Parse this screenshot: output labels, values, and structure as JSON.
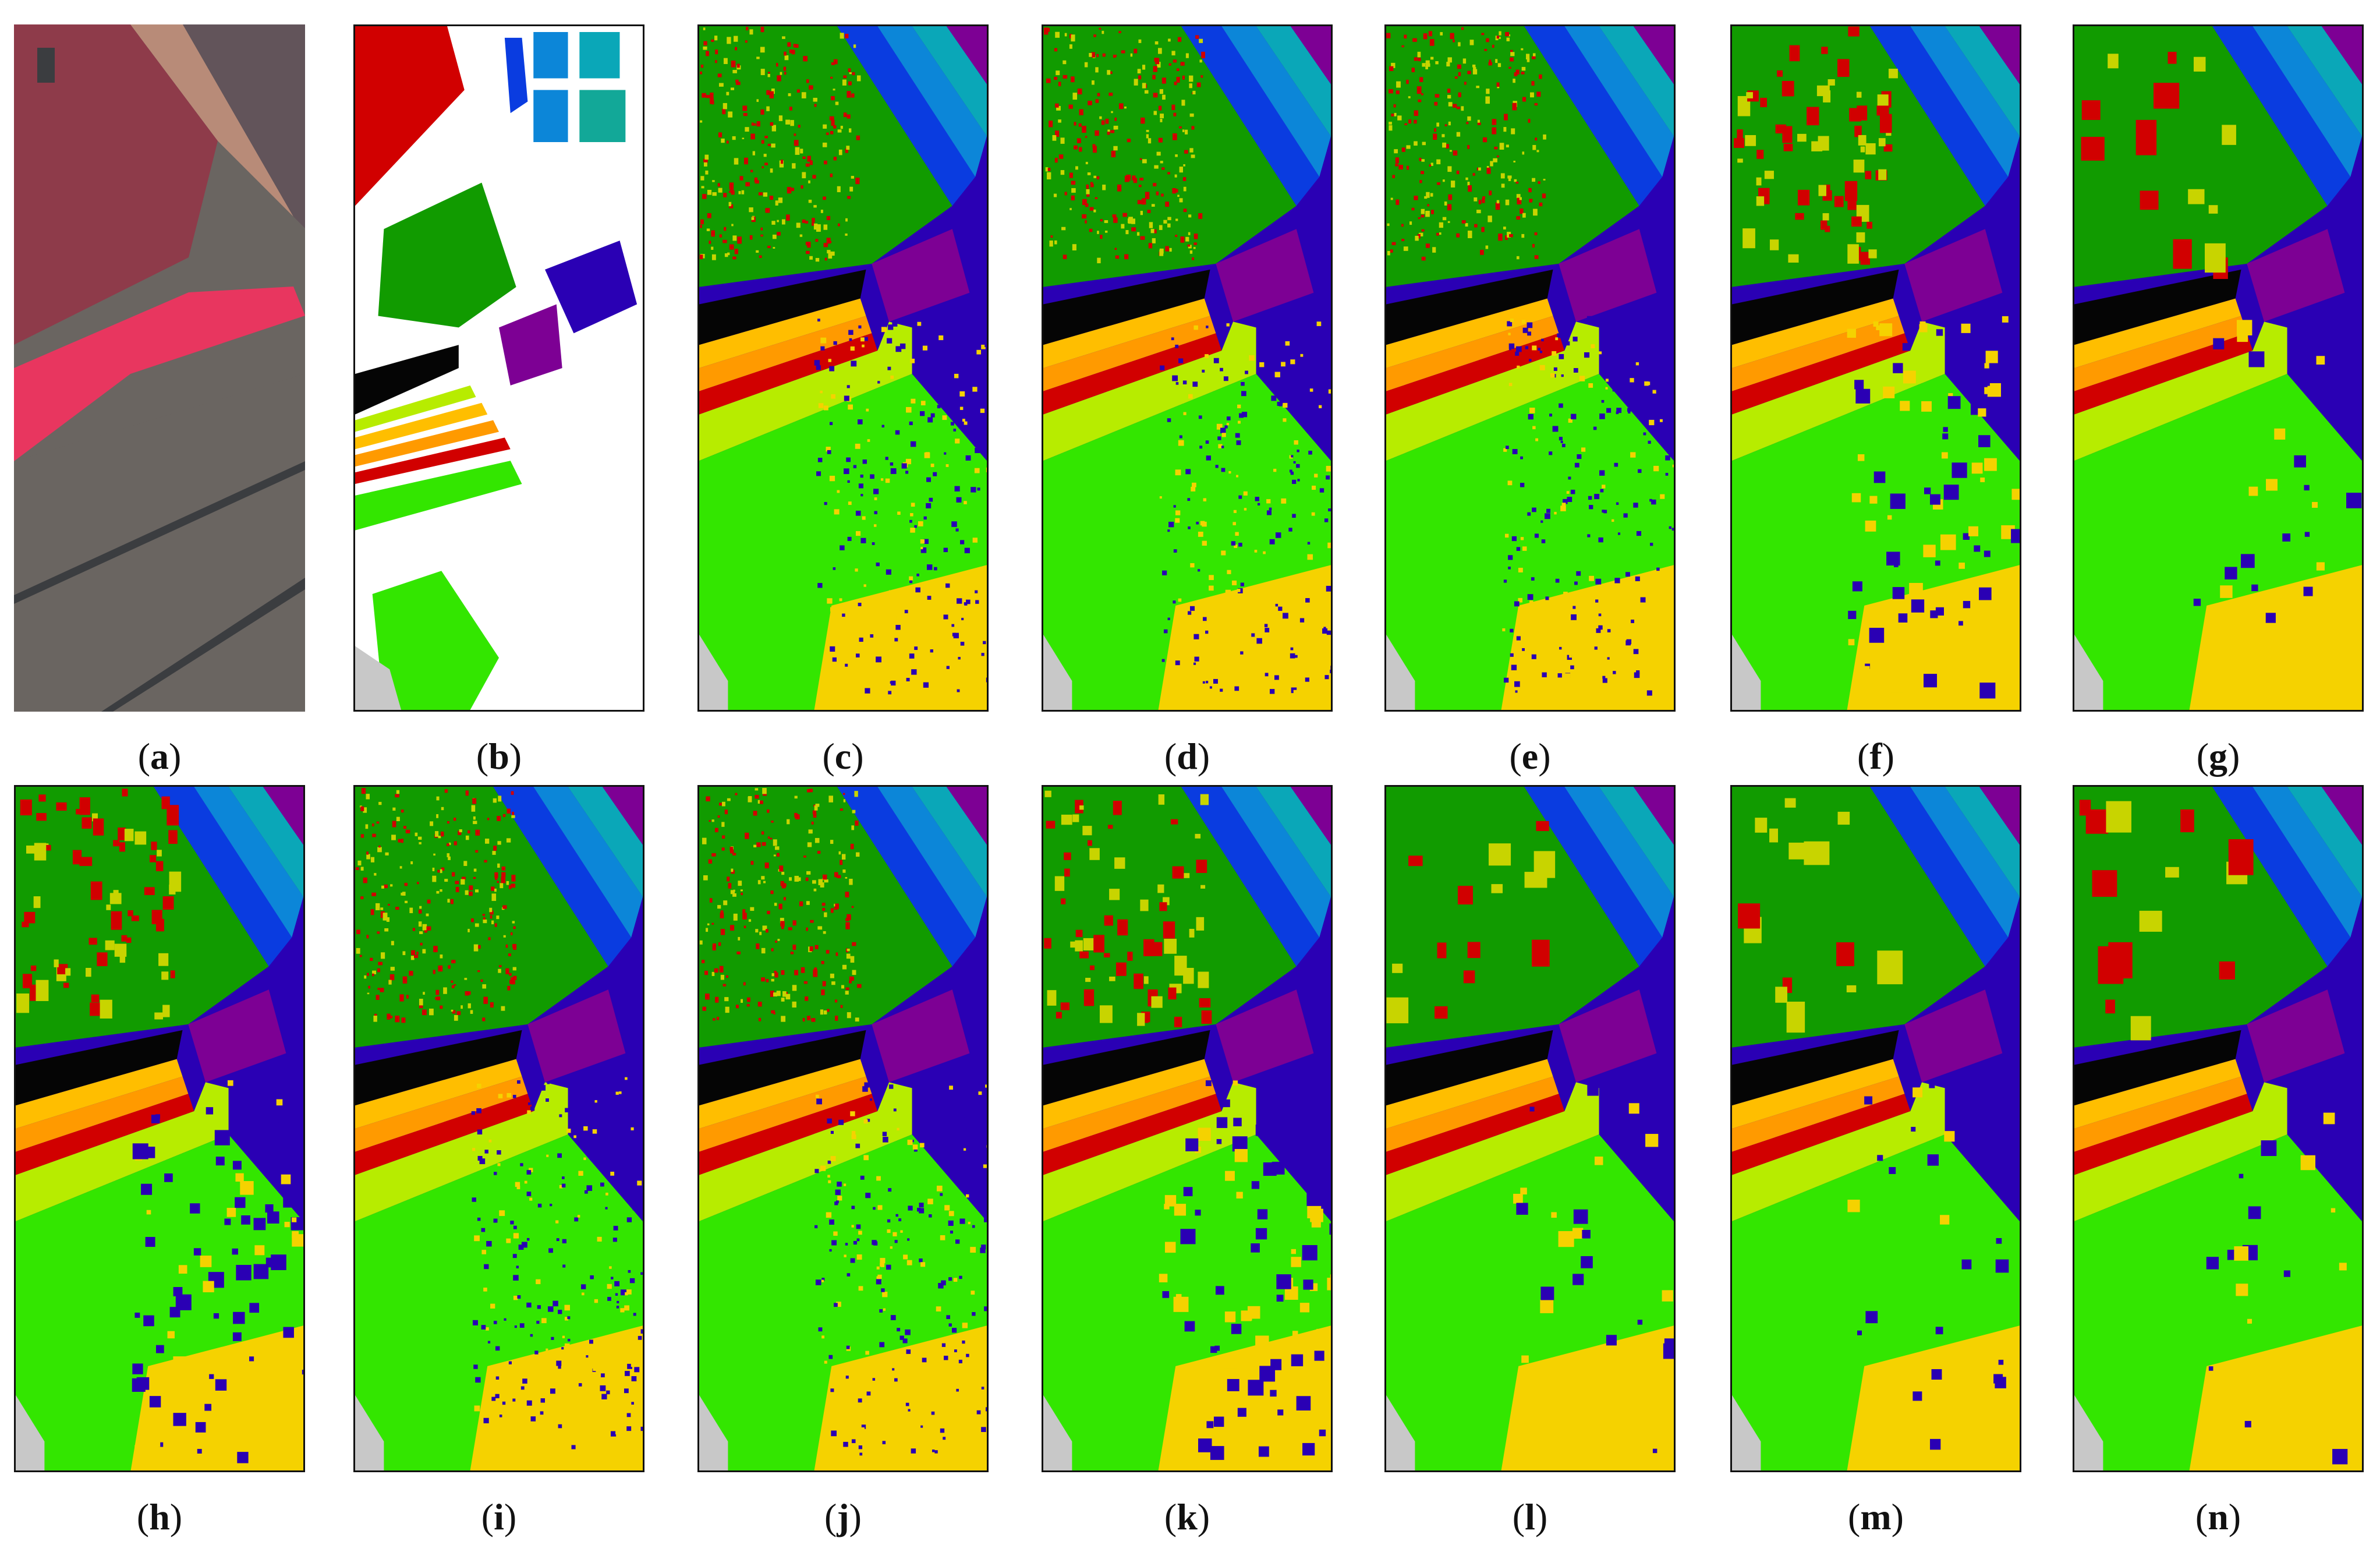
{
  "figure": {
    "panels": [
      {
        "letter": "a",
        "kind": "false-color"
      },
      {
        "letter": "b",
        "kind": "ground-truth"
      },
      {
        "letter": "c",
        "kind": "classification",
        "texture": "speckled"
      },
      {
        "letter": "d",
        "kind": "classification",
        "texture": "speckled"
      },
      {
        "letter": "e",
        "kind": "classification",
        "texture": "speckled"
      },
      {
        "letter": "f",
        "kind": "classification",
        "texture": "blotchy"
      },
      {
        "letter": "g",
        "kind": "classification",
        "texture": "smooth"
      },
      {
        "letter": "h",
        "kind": "classification",
        "texture": "blotchy"
      },
      {
        "letter": "i",
        "kind": "classification",
        "texture": "speckled"
      },
      {
        "letter": "j",
        "kind": "classification",
        "texture": "speckled"
      },
      {
        "letter": "k",
        "kind": "classification",
        "texture": "blotchy"
      },
      {
        "letter": "l",
        "kind": "classification",
        "texture": "smooth"
      },
      {
        "letter": "m",
        "kind": "classification",
        "texture": "smooth"
      },
      {
        "letter": "n",
        "kind": "classification",
        "texture": "smooth"
      }
    ],
    "class_colors": {
      "red": "#d10000",
      "dark_green": "#119b00",
      "black": "#050505",
      "purple": "#7d0094",
      "navy": "#2a00b4",
      "blue": "#0a3ce0",
      "sky": "#0c86d8",
      "teal": "#0aa7b8",
      "sea": "#12a898",
      "bright_green": "#33e600",
      "lime": "#b7ec00",
      "yellow": "#f5d200",
      "orange": "#ff9a00",
      "gold": "#ffbe00",
      "gray": "#c8c8c8",
      "speckle": "#c8d400"
    },
    "false_color": {
      "red_field": "#8e3b4a",
      "bright_field": "#e8365f",
      "dark_field": "#62545a",
      "gray_field": "#6a6561",
      "road": "#3b3d40",
      "tan_strip": "#b88b78"
    }
  }
}
